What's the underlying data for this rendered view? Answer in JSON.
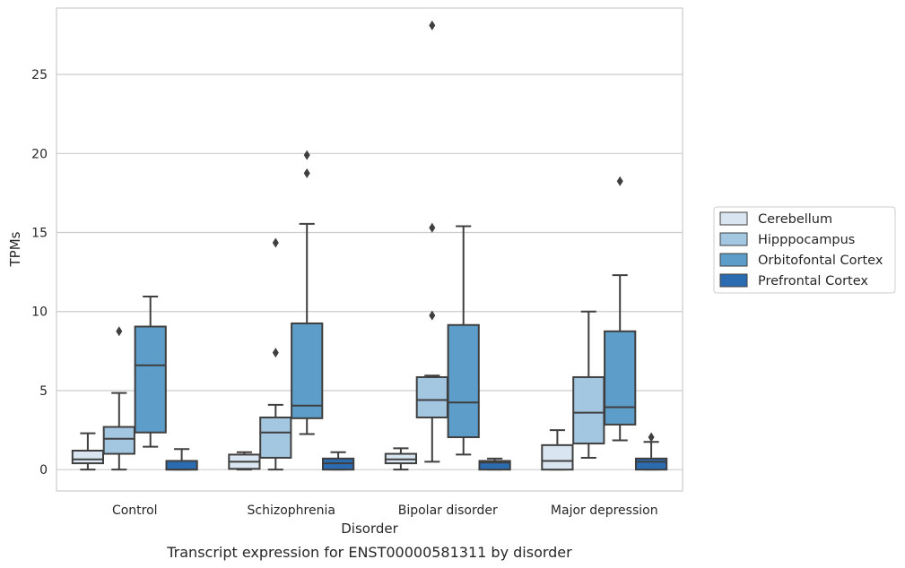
{
  "chart_data": {
    "type": "boxplot",
    "title": "",
    "caption": "Transcript expression for ENST00000581311 by disorder",
    "xlabel": "Disorder",
    "ylabel": "TPMs",
    "ylim": [
      -1.35,
      29.2
    ],
    "yticks": [
      0,
      5,
      10,
      15,
      20,
      25
    ],
    "grid": "horizontal",
    "legend_position": "right",
    "categories": [
      "Control",
      "Schizophrenia",
      "Bipolar disorder",
      "Major depression"
    ],
    "series": [
      {
        "name": "Cerebellum",
        "color": "#d9e6f2",
        "boxes": [
          {
            "whislo": 0.0,
            "q1": 0.4,
            "med": 0.65,
            "q3": 1.2,
            "whishi": 2.3,
            "fliers": []
          },
          {
            "whislo": 0.0,
            "q1": 0.05,
            "med": 0.5,
            "q3": 0.95,
            "whishi": 1.1,
            "fliers": []
          },
          {
            "whislo": 0.0,
            "q1": 0.4,
            "med": 0.65,
            "q3": 1.0,
            "whishi": 1.35,
            "fliers": []
          },
          {
            "whislo": 0.0,
            "q1": 0.0,
            "med": 0.55,
            "q3": 1.55,
            "whishi": 2.5,
            "fliers": []
          }
        ]
      },
      {
        "name": "Hipppocampus",
        "color": "#a3c7e0",
        "boxes": [
          {
            "whislo": 0.0,
            "q1": 1.0,
            "med": 1.95,
            "q3": 2.7,
            "whishi": 4.85,
            "fliers": [
              8.75
            ]
          },
          {
            "whislo": 0.0,
            "q1": 0.75,
            "med": 2.35,
            "q3": 3.3,
            "whishi": 4.1,
            "fliers": [
              7.4,
              14.35
            ]
          },
          {
            "whislo": 0.5,
            "q1": 3.3,
            "med": 4.4,
            "q3": 5.85,
            "whishi": 5.95,
            "fliers": [
              9.75,
              15.3,
              28.1
            ]
          },
          {
            "whislo": 0.75,
            "q1": 1.65,
            "med": 3.6,
            "q3": 5.85,
            "whishi": 10.0,
            "fliers": []
          }
        ]
      },
      {
        "name": "Orbitofontal Cortex",
        "color": "#5c9ec9",
        "boxes": [
          {
            "whislo": 1.45,
            "q1": 2.35,
            "med": 6.6,
            "q3": 9.05,
            "whishi": 10.95,
            "fliers": []
          },
          {
            "whislo": 2.25,
            "q1": 3.25,
            "med": 4.05,
            "q3": 9.25,
            "whishi": 15.55,
            "fliers": [
              18.75,
              19.9
            ]
          },
          {
            "whislo": 0.95,
            "q1": 2.05,
            "med": 4.25,
            "q3": 9.15,
            "whishi": 15.4,
            "fliers": []
          },
          {
            "whislo": 1.85,
            "q1": 2.85,
            "med": 3.95,
            "q3": 8.75,
            "whishi": 12.3,
            "fliers": [
              18.25
            ]
          }
        ]
      },
      {
        "name": "Prefrontal Cortex",
        "color": "#2b6cb0",
        "boxes": [
          {
            "whislo": 0.0,
            "q1": 0.0,
            "med": 0.0,
            "q3": 0.55,
            "whishi": 1.3,
            "fliers": []
          },
          {
            "whislo": 0.0,
            "q1": 0.0,
            "med": 0.4,
            "q3": 0.7,
            "whishi": 1.1,
            "fliers": []
          },
          {
            "whislo": 0.0,
            "q1": 0.0,
            "med": 0.45,
            "q3": 0.55,
            "whishi": 0.7,
            "fliers": []
          },
          {
            "whislo": 0.0,
            "q1": 0.0,
            "med": 0.5,
            "q3": 0.7,
            "whishi": 1.75,
            "fliers": [
              2.05
            ]
          }
        ]
      }
    ]
  }
}
